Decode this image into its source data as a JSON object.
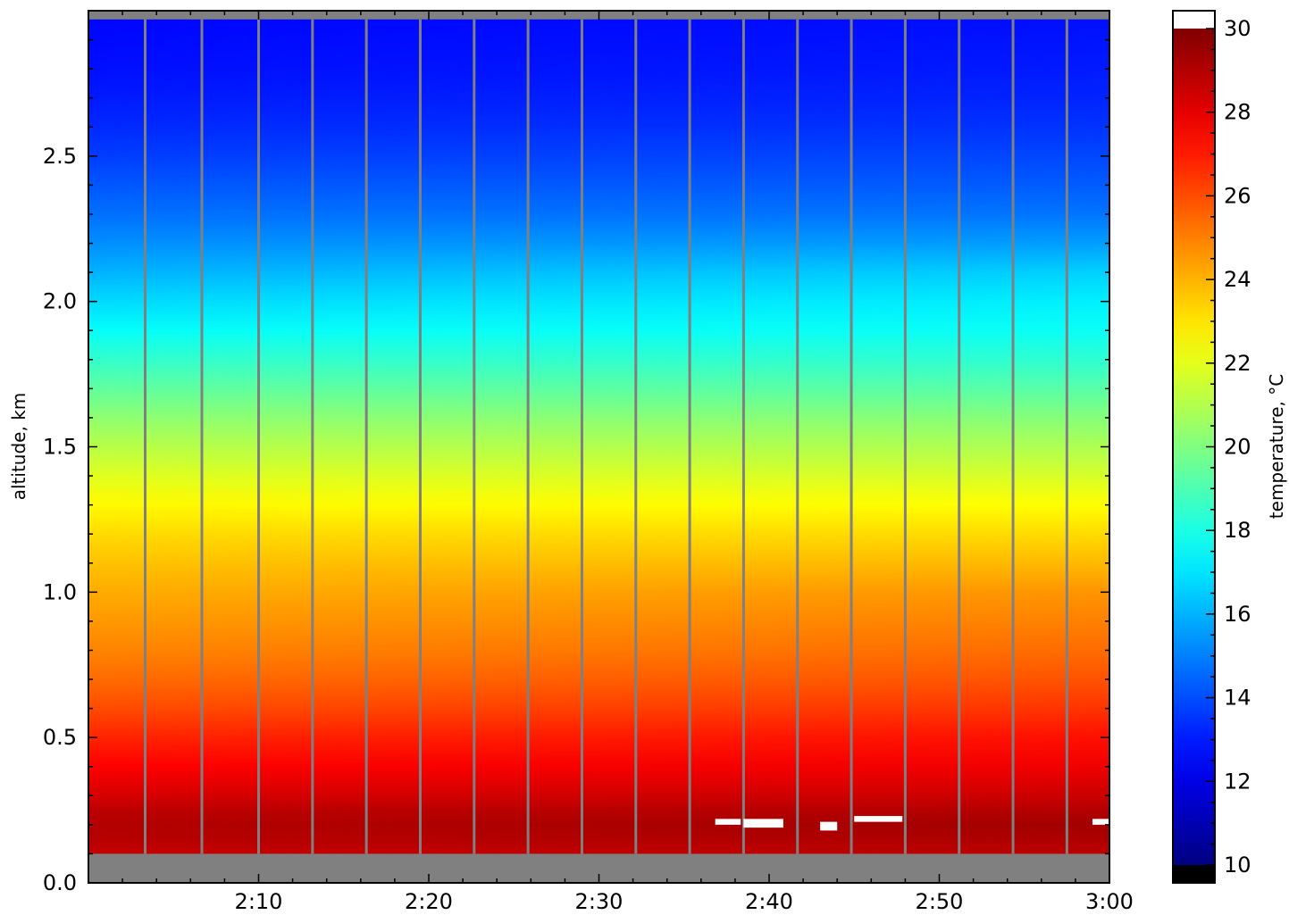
{
  "chart_data": {
    "type": "heatmap",
    "title": "",
    "ylabel": "altitude, km",
    "xlabel": "",
    "xlim": [
      "2:00",
      "3:00"
    ],
    "ylim": [
      0.0,
      3.0
    ],
    "x_ticks": [
      "2:10",
      "2:20",
      "2:30",
      "2:40",
      "2:50",
      "3:00"
    ],
    "y_ticks": [
      "0.0",
      "0.5",
      "1.0",
      "1.5",
      "2.0",
      "2.5"
    ],
    "colorbar": {
      "label": "temperature, °C",
      "range": [
        10,
        30
      ],
      "ticks": [
        "10",
        "12",
        "14",
        "16",
        "18",
        "20",
        "22",
        "24",
        "26",
        "28",
        "30"
      ],
      "colormap": "jet",
      "under_color": "#000000",
      "over_color": "#ffffff"
    },
    "no_data_color": "#808080",
    "no_data_below_km": 0.1,
    "no_data_above_km": 2.97,
    "scan_gap_times": [
      "2:03:20",
      "2:06:40",
      "2:10:00",
      "2:13:10",
      "2:16:20",
      "2:19:30",
      "2:22:40",
      "2:25:50",
      "2:29:00",
      "2:32:10",
      "2:35:20",
      "2:38:30",
      "2:41:40",
      "2:44:50",
      "2:48:00",
      "2:51:10",
      "2:54:20",
      "2:57:30"
    ],
    "profile": {
      "altitude_km": [
        0.1,
        0.15,
        0.2,
        0.25,
        0.3,
        0.4,
        0.5,
        0.6,
        0.7,
        0.8,
        0.9,
        1.0,
        1.1,
        1.2,
        1.3,
        1.4,
        1.5,
        1.6,
        1.7,
        1.8,
        1.9,
        2.0,
        2.1,
        2.2,
        2.3,
        2.4,
        2.5,
        2.6,
        2.7,
        2.8,
        2.97
      ],
      "temperature_c_start": [
        28.6,
        28.9,
        29.0,
        28.8,
        28.3,
        27.5,
        26.8,
        26.0,
        25.4,
        24.9,
        24.5,
        24.1,
        23.7,
        23.2,
        22.6,
        21.9,
        21.1,
        20.3,
        19.4,
        18.5,
        17.6,
        16.8,
        16.0,
        15.3,
        14.7,
        14.2,
        13.7,
        13.3,
        13.0,
        12.8,
        12.6
      ],
      "temperature_c_end": [
        28.8,
        29.1,
        29.3,
        29.0,
        28.5,
        27.8,
        27.2,
        26.5,
        25.9,
        25.4,
        25.0,
        24.6,
        23.9,
        23.2,
        22.5,
        21.7,
        20.9,
        20.1,
        19.2,
        18.4,
        17.7,
        17.2,
        16.6,
        15.6,
        14.8,
        14.3,
        13.9,
        13.5,
        13.2,
        13.0,
        12.8
      ]
    },
    "saturated_patches": [
      {
        "t_start": "2:36:50",
        "t_end": "2:38:20",
        "alt_min_km": 0.2,
        "alt_max_km": 0.22
      },
      {
        "t_start": "2:38:30",
        "t_end": "2:40:50",
        "alt_min_km": 0.19,
        "alt_max_km": 0.22
      },
      {
        "t_start": "2:43:00",
        "t_end": "2:44:00",
        "alt_min_km": 0.18,
        "alt_max_km": 0.21
      },
      {
        "t_start": "2:45:00",
        "t_end": "2:47:50",
        "alt_min_km": 0.21,
        "alt_max_km": 0.23
      },
      {
        "t_start": "2:59:00",
        "t_end": "3:00:00",
        "alt_min_km": 0.2,
        "alt_max_km": 0.22
      }
    ]
  }
}
